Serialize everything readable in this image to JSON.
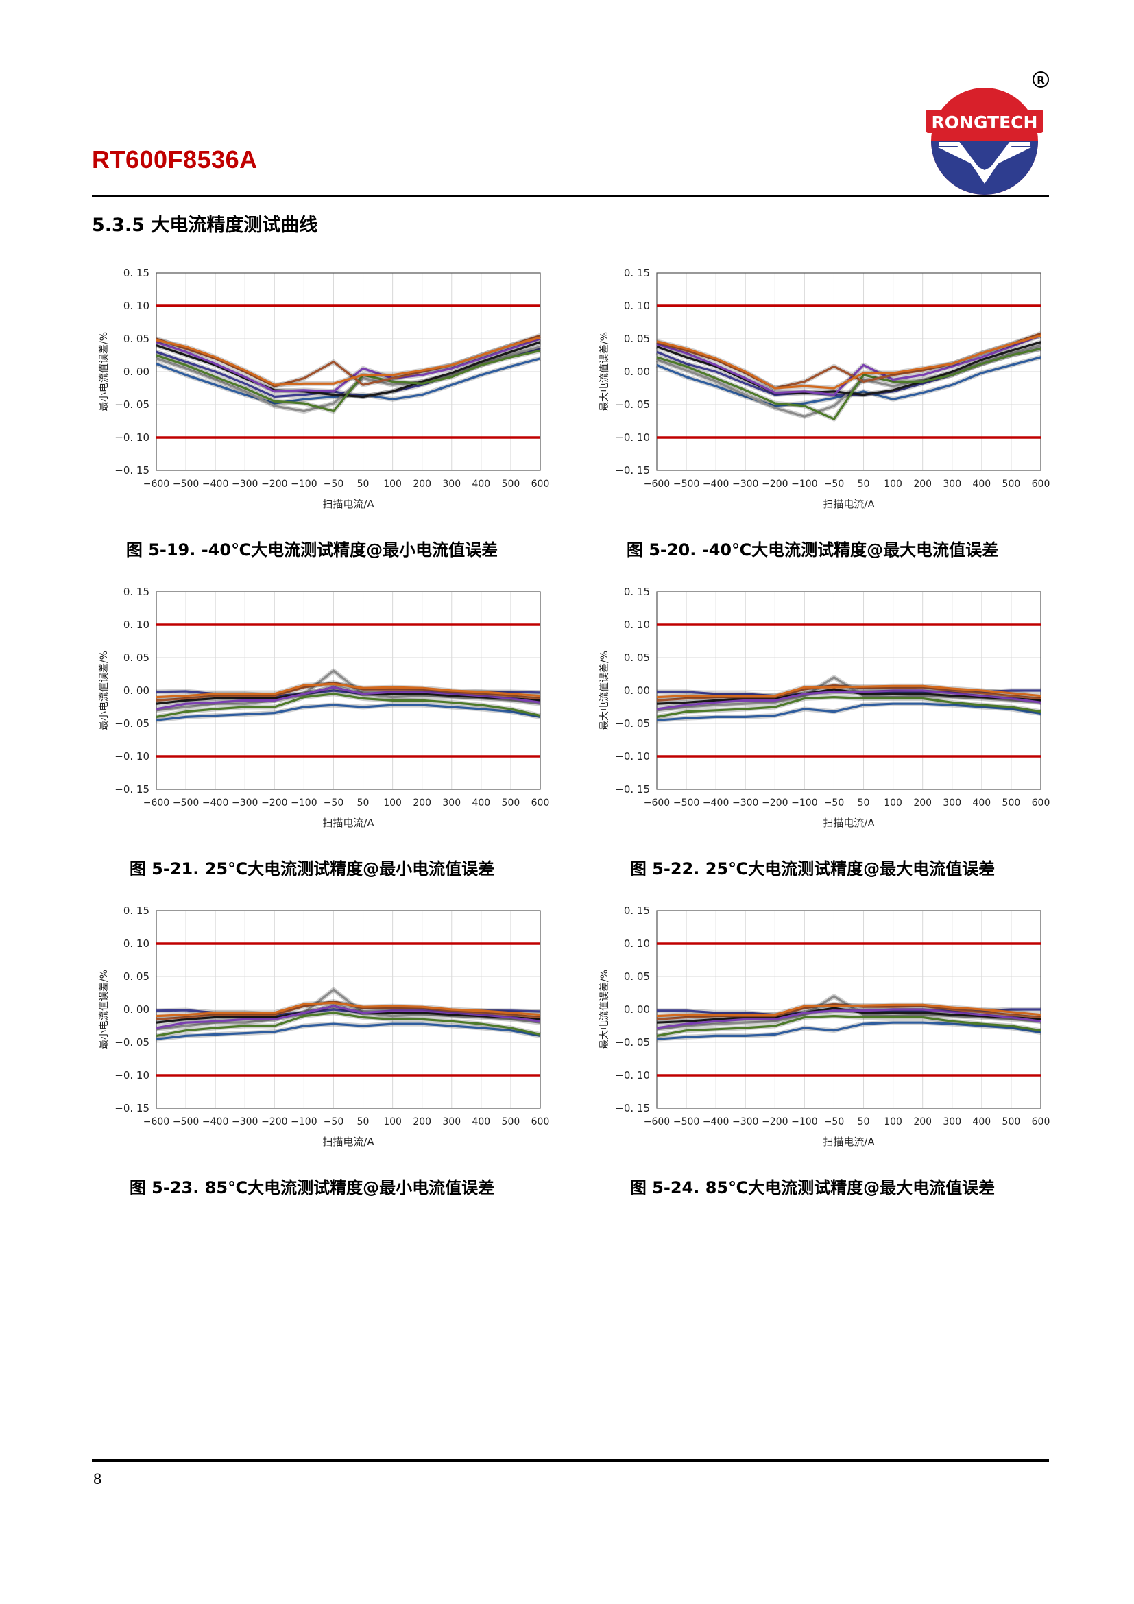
{
  "header": {
    "doc_title": "RT600F8536A",
    "logo_text": "RONGTECH",
    "registered_mark": "R"
  },
  "section": {
    "title": "5.3.5  大电流精度测试曲线"
  },
  "page_number": "8",
  "colors": {
    "limit_line": "#c00000",
    "grid": "#d9d9d9",
    "logo_red": "#d8202a",
    "logo_blue": "#2e3d8f"
  },
  "charts": [
    {
      "id": "5-19",
      "caption": "图  5-19. -40℃大电流测试精度@最小电流值误差",
      "ylabel": "最小电流值误差/%",
      "xlabel": "扫描电流/A",
      "profile": "cold_min"
    },
    {
      "id": "5-20",
      "caption": "图  5-20. -40℃大电流测试精度@最大电流值误差",
      "ylabel": "最大电流值误差/%",
      "xlabel": "扫描电流/A",
      "profile": "cold_max"
    },
    {
      "id": "5-21",
      "caption": "图  5-21. 25℃大电流测试精度@最小电流值误差",
      "ylabel": "最小电流值误差/%",
      "xlabel": "扫描电流/A",
      "profile": "room_min"
    },
    {
      "id": "5-22",
      "caption": "图  5-22. 25℃大电流测试精度@最大电流值误差",
      "ylabel": "最大电流值误差/%",
      "xlabel": "扫描电流/A",
      "profile": "room_max"
    },
    {
      "id": "5-23",
      "caption": "图  5-23. 85℃大电流测试精度@最小电流值误差",
      "ylabel": "最小电流值误差/%",
      "xlabel": "扫描电流/A",
      "profile": "room_min"
    },
    {
      "id": "5-24",
      "caption": "图  5-24. 85℃大电流测试精度@最大电流值误差",
      "ylabel": "最大电流值误差/%",
      "xlabel": "扫描电流/A",
      "profile": "room_max"
    }
  ],
  "chart_data": {
    "type": "line",
    "x": [
      -600,
      -500,
      -400,
      -300,
      -200,
      -100,
      -50,
      50,
      100,
      200,
      300,
      400,
      500,
      600
    ],
    "x_tick_labels": [
      "−600",
      "−500",
      "−400",
      "−300",
      "−200",
      "−100",
      "−50",
      "50",
      "100",
      "200",
      "300",
      "400",
      "500",
      "600"
    ],
    "y_ticks": [
      -0.15,
      -0.1,
      -0.05,
      0.0,
      0.05,
      0.1,
      0.15
    ],
    "y_tick_labels": [
      "−0. 15",
      "−0. 10",
      "−0. 05",
      "0. 00",
      "0. 05",
      "0. 10",
      "0. 15"
    ],
    "ylim": [
      -0.15,
      0.15
    ],
    "limit_lines": [
      0.1,
      -0.1
    ],
    "grid": true,
    "series_colors": [
      "#2f5d9e",
      "#3d3d8f",
      "#8a8a8a",
      "#1a1a1a",
      "#4e7a2a",
      "#7a3fb0",
      "#a0522d",
      "#d2691e"
    ],
    "profiles": {
      "cold_min": [
        [
          0.012,
          -0.005,
          -0.02,
          -0.035,
          -0.048,
          -0.042,
          -0.038,
          -0.035,
          -0.042,
          -0.035,
          -0.02,
          -0.005,
          0.008,
          0.02
        ],
        [
          0.03,
          0.015,
          0.0,
          -0.018,
          -0.038,
          -0.035,
          -0.03,
          -0.038,
          -0.03,
          -0.02,
          -0.005,
          0.01,
          0.025,
          0.035
        ],
        [
          0.02,
          0.005,
          -0.012,
          -0.03,
          -0.052,
          -0.06,
          -0.048,
          -0.01,
          -0.02,
          -0.015,
          -0.005,
          0.012,
          0.025,
          0.038
        ],
        [
          0.04,
          0.025,
          0.01,
          -0.01,
          -0.028,
          -0.03,
          -0.035,
          -0.038,
          -0.03,
          -0.015,
          -0.002,
          0.015,
          0.03,
          0.045
        ],
        [
          0.025,
          0.01,
          -0.008,
          -0.025,
          -0.045,
          -0.048,
          -0.06,
          -0.005,
          -0.015,
          -0.018,
          -0.008,
          0.01,
          0.022,
          0.032
        ],
        [
          0.045,
          0.03,
          0.012,
          -0.008,
          -0.03,
          -0.028,
          -0.03,
          0.005,
          -0.01,
          -0.005,
          0.005,
          0.02,
          0.035,
          0.05
        ],
        [
          0.05,
          0.035,
          0.02,
          0.0,
          -0.022,
          -0.01,
          0.015,
          -0.02,
          -0.01,
          0.0,
          0.01,
          0.025,
          0.04,
          0.055
        ],
        [
          0.048,
          0.038,
          0.022,
          0.002,
          -0.02,
          -0.018,
          -0.018,
          -0.005,
          -0.005,
          0.002,
          0.01,
          0.025,
          0.04,
          0.052
        ]
      ],
      "cold_max": [
        [
          0.01,
          -0.008,
          -0.022,
          -0.038,
          -0.052,
          -0.048,
          -0.04,
          -0.03,
          -0.042,
          -0.032,
          -0.02,
          -0.002,
          0.01,
          0.022
        ],
        [
          0.03,
          0.012,
          0.0,
          -0.018,
          -0.035,
          -0.032,
          -0.035,
          -0.035,
          -0.03,
          -0.018,
          -0.005,
          0.012,
          0.025,
          0.035
        ],
        [
          0.018,
          0.002,
          -0.015,
          -0.035,
          -0.055,
          -0.068,
          -0.052,
          -0.012,
          -0.022,
          -0.012,
          -0.002,
          0.012,
          0.028,
          0.04
        ],
        [
          0.038,
          0.022,
          0.008,
          -0.012,
          -0.032,
          -0.032,
          -0.03,
          -0.035,
          -0.028,
          -0.015,
          0.0,
          0.018,
          0.032,
          0.045
        ],
        [
          0.022,
          0.008,
          -0.01,
          -0.028,
          -0.048,
          -0.052,
          -0.072,
          -0.005,
          -0.015,
          -0.015,
          -0.005,
          0.012,
          0.025,
          0.035
        ],
        [
          0.042,
          0.028,
          0.01,
          -0.01,
          -0.032,
          -0.03,
          -0.035,
          0.01,
          -0.012,
          -0.005,
          0.008,
          0.022,
          0.038,
          0.055
        ],
        [
          0.045,
          0.032,
          0.018,
          -0.002,
          -0.025,
          -0.015,
          0.008,
          -0.015,
          -0.005,
          0.002,
          0.012,
          0.028,
          0.042,
          0.058
        ],
        [
          0.046,
          0.035,
          0.02,
          0.0,
          -0.025,
          -0.022,
          -0.025,
          -0.002,
          -0.002,
          0.005,
          0.012,
          0.028,
          0.042,
          0.055
        ]
      ],
      "room_min": [
        [
          -0.045,
          -0.04,
          -0.038,
          -0.036,
          -0.034,
          -0.025,
          -0.022,
          -0.025,
          -0.022,
          -0.022,
          -0.025,
          -0.028,
          -0.032,
          -0.04
        ],
        [
          -0.002,
          -0.001,
          -0.005,
          -0.005,
          -0.008,
          -0.005,
          0.0,
          -0.005,
          -0.003,
          -0.002,
          -0.003,
          -0.002,
          -0.002,
          -0.003
        ],
        [
          -0.03,
          -0.025,
          -0.02,
          -0.02,
          -0.015,
          -0.005,
          0.03,
          -0.005,
          -0.01,
          -0.008,
          -0.01,
          -0.012,
          -0.015,
          -0.02
        ],
        [
          -0.02,
          -0.015,
          -0.012,
          -0.012,
          -0.012,
          -0.005,
          0.005,
          -0.005,
          -0.005,
          -0.005,
          -0.008,
          -0.01,
          -0.012,
          -0.015
        ],
        [
          -0.04,
          -0.032,
          -0.028,
          -0.025,
          -0.025,
          -0.01,
          -0.005,
          -0.012,
          -0.015,
          -0.015,
          -0.018,
          -0.022,
          -0.028,
          -0.038
        ],
        [
          -0.028,
          -0.02,
          -0.018,
          -0.015,
          -0.015,
          -0.005,
          0.005,
          -0.005,
          -0.002,
          -0.002,
          -0.005,
          -0.008,
          -0.012,
          -0.018
        ],
        [
          -0.015,
          -0.012,
          -0.008,
          -0.008,
          -0.008,
          0.005,
          0.012,
          0.002,
          0.002,
          0.002,
          -0.002,
          -0.005,
          -0.008,
          -0.012
        ],
        [
          -0.01,
          -0.008,
          -0.005,
          -0.005,
          -0.005,
          0.008,
          0.01,
          0.004,
          0.005,
          0.004,
          0.0,
          -0.002,
          -0.005,
          -0.008
        ]
      ],
      "room_max": [
        [
          -0.045,
          -0.042,
          -0.04,
          -0.04,
          -0.038,
          -0.028,
          -0.032,
          -0.022,
          -0.02,
          -0.02,
          -0.022,
          -0.025,
          -0.028,
          -0.035
        ],
        [
          -0.002,
          -0.002,
          -0.005,
          -0.005,
          -0.008,
          -0.005,
          -0.002,
          -0.002,
          -0.002,
          -0.002,
          -0.002,
          -0.002,
          0.0,
          0.0
        ],
        [
          -0.03,
          -0.025,
          -0.022,
          -0.02,
          -0.018,
          -0.008,
          0.02,
          -0.008,
          -0.01,
          -0.008,
          -0.01,
          -0.012,
          -0.015,
          -0.018
        ],
        [
          -0.02,
          -0.018,
          -0.015,
          -0.012,
          -0.012,
          -0.005,
          0.002,
          -0.005,
          -0.005,
          -0.005,
          -0.008,
          -0.01,
          -0.012,
          -0.015
        ],
        [
          -0.04,
          -0.032,
          -0.03,
          -0.028,
          -0.025,
          -0.012,
          -0.01,
          -0.012,
          -0.012,
          -0.012,
          -0.018,
          -0.022,
          -0.025,
          -0.032
        ],
        [
          -0.028,
          -0.022,
          -0.018,
          -0.015,
          -0.015,
          -0.005,
          -0.002,
          -0.002,
          0.0,
          0.0,
          -0.004,
          -0.008,
          -0.012,
          -0.018
        ],
        [
          -0.015,
          -0.012,
          -0.01,
          -0.01,
          -0.01,
          0.002,
          0.008,
          0.004,
          0.004,
          0.005,
          0.0,
          -0.004,
          -0.008,
          -0.012
        ],
        [
          -0.01,
          -0.008,
          -0.008,
          -0.008,
          -0.008,
          0.005,
          0.005,
          0.006,
          0.007,
          0.007,
          0.003,
          0.0,
          -0.004,
          -0.008
        ]
      ]
    }
  }
}
